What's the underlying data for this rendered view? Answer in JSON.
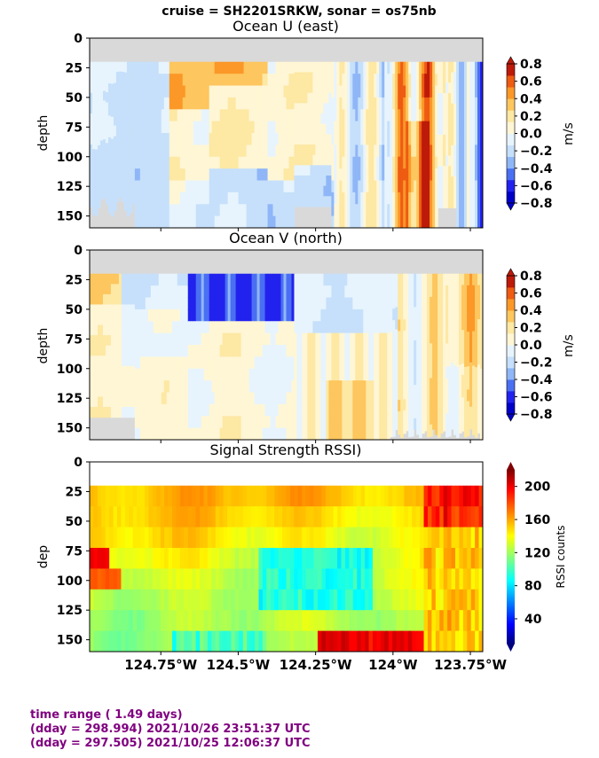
{
  "suptitle": "cruise = SH2201SRKW,  sonar = os75nb",
  "colors": {
    "fill_gray": "#d9d9d9",
    "footer_purple": "#800080"
  },
  "chart_data": [
    {
      "type": "heatmap",
      "title": "Ocean U (east)",
      "ylabel": "depth",
      "yticks": [
        "0",
        "25",
        "50",
        "75",
        "100",
        "125",
        "150"
      ],
      "ylim": [
        160,
        0
      ],
      "xlim": [
        -124.98,
        -123.71
      ],
      "x_ticks": [],
      "colorbar": {
        "label": "m/s",
        "ticks": [
          "0.8",
          "0.6",
          "0.4",
          "0.2",
          "0.0",
          "−0.2",
          "−0.4",
          "−0.6",
          "−0.8"
        ],
        "levels": [
          -0.8,
          0.8
        ],
        "colors": [
          "#0000c8",
          "#2222ee",
          "#4a6ff2",
          "#8fb6f7",
          "#c6e0fb",
          "#e7f4fd",
          "#fff6d5",
          "#fde8a4",
          "#fdc65e",
          "#fb9828",
          "#ee5b12",
          "#bd1a0a"
        ]
      },
      "grid": false,
      "legend": "none"
    },
    {
      "type": "heatmap",
      "title": "Ocean V (north)",
      "ylabel": "depth",
      "yticks": [
        "0",
        "25",
        "50",
        "75",
        "100",
        "125",
        "150"
      ],
      "ylim": [
        160,
        0
      ],
      "xlim": [
        -124.98,
        -123.71
      ],
      "x_ticks": [],
      "colorbar": {
        "label": "m/s",
        "ticks": [
          "0.8",
          "0.6",
          "0.4",
          "0.2",
          "0.0",
          "−0.2",
          "−0.4",
          "−0.6",
          "−0.8"
        ],
        "levels": [
          -0.8,
          0.8
        ],
        "colors": [
          "#0000c8",
          "#2222ee",
          "#4a6ff2",
          "#8fb6f7",
          "#c6e0fb",
          "#e7f4fd",
          "#fff6d5",
          "#fde8a4",
          "#fdc65e",
          "#fb9828",
          "#ee5b12",
          "#bd1a0a"
        ]
      },
      "grid": false,
      "legend": "none"
    },
    {
      "type": "heatmap",
      "title": "Signal Strength RSSI)",
      "ylabel": "dep",
      "yticks": [
        "0",
        "25",
        "50",
        "75",
        "100",
        "125",
        "150"
      ],
      "ylim": [
        160,
        0
      ],
      "xlim": [
        -124.98,
        -123.71
      ],
      "x_ticks": [
        {
          "value": -124.75,
          "label": "124.75°W"
        },
        {
          "value": -124.5,
          "label": "124.5°W"
        },
        {
          "value": -124.25,
          "label": "124.25°W"
        },
        {
          "value": -124.0,
          "label": "124°W"
        },
        {
          "value": -123.75,
          "label": "123.75°W"
        }
      ],
      "colorbar": {
        "label": "RSSI counts",
        "ticks": [
          "200",
          "160",
          "120",
          "80",
          "40"
        ],
        "tick_values": [
          200,
          160,
          120,
          80,
          40
        ],
        "range": [
          10,
          220
        ],
        "colormap": "jet"
      },
      "grid": false,
      "legend": "none"
    }
  ],
  "footer": {
    "line1": "time range ( 1.49 days)",
    "line2": "(dday = 298.994) 2021/10/26 23:51:37 UTC",
    "line3": "(dday = 297.505) 2021/10/25 12:06:37 UTC"
  }
}
